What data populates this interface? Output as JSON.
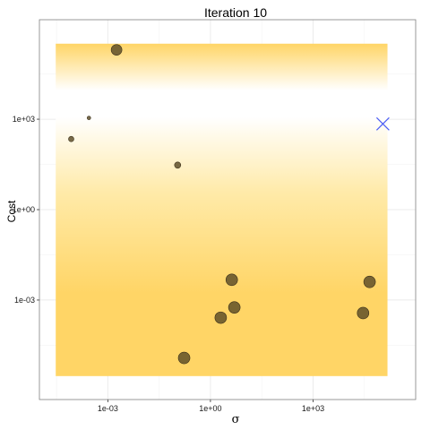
{
  "chart_data": {
    "type": "scatter",
    "title": "Iteration 10",
    "xlabel": "σ",
    "ylabel": "Cost",
    "x_scale": "log10",
    "y_scale": "log10",
    "xlim": [
      1e-05,
      1000000.0
    ],
    "ylim": [
      5e-07,
      2000000.0
    ],
    "x_ticks": [
      {
        "value": 0.001,
        "label": "1e-03"
      },
      {
        "value": 1,
        "label": "1e+00"
      },
      {
        "value": 1000,
        "label": "1e+03"
      }
    ],
    "y_ticks": [
      {
        "value": 0.001,
        "label": "1e-03"
      },
      {
        "value": 1,
        "label": "1e+00"
      },
      {
        "value": 1000,
        "label": "1e+03"
      }
    ],
    "grid": true,
    "background_band": {
      "x_range": [
        3e-05,
        150000.0
      ],
      "y_range": [
        3e-06,
        320000.0
      ],
      "description_colors": [
        "#ffd566",
        "#ffffff"
      ]
    },
    "points": [
      {
        "x": 0.0018,
        "y": 200000,
        "size": 6
      },
      {
        "x": 0.00028,
        "y": 1100,
        "size": 2
      },
      {
        "x": 8.5e-05,
        "y": 220,
        "size": 3
      },
      {
        "x": 0.11,
        "y": 30,
        "size": 3.5
      },
      {
        "x": 4.2,
        "y": 0.0047,
        "size": 6.5
      },
      {
        "x": 5.0,
        "y": 0.00057,
        "size": 6.5
      },
      {
        "x": 2.0,
        "y": 0.00026,
        "size": 6.5
      },
      {
        "x": 0.17,
        "y": 1.2e-05,
        "size": 6.5
      },
      {
        "x": 45000,
        "y": 0.004,
        "size": 6.5
      },
      {
        "x": 29000,
        "y": 0.00037,
        "size": 6.5
      }
    ],
    "marker": {
      "x": 110000,
      "y": 700,
      "symbol": "x",
      "color": "#4a5cf5"
    },
    "colors": {
      "point_fill": "#5a4a26",
      "point_stroke": "#3b301a",
      "band_dark": "#ffd566",
      "band_light": "#ffffff",
      "grid": "#ebebeb",
      "panel_border": "#7f7f7f"
    }
  }
}
